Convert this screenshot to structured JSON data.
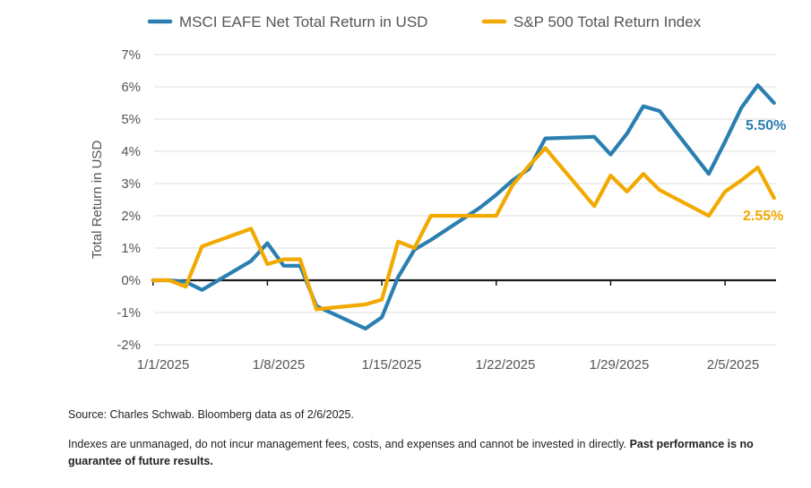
{
  "chart_data": {
    "type": "line",
    "title": "",
    "xlabel": "",
    "ylabel": "Total Return in USD",
    "ylim": [
      -2,
      7
    ],
    "y_ticks": [
      "7%",
      "6%",
      "5%",
      "4%",
      "3%",
      "2%",
      "1%",
      "0%",
      "-1%",
      "-2%"
    ],
    "x_tick_labels": [
      "1/1/2025",
      "1/8/2025",
      "1/15/2025",
      "1/22/2025",
      "1/29/2025",
      "2/5/2025"
    ],
    "grid": true,
    "legend_position": "top",
    "series": [
      {
        "name": "MSCI EAFE Net Total Return in USD",
        "color": "#2a7fb0",
        "end_label": "5.50%",
        "points": [
          [
            "2024-12-31",
            0.0
          ],
          [
            "2025-01-01",
            0.0
          ],
          [
            "2025-01-02",
            -0.05
          ],
          [
            "2025-01-03",
            -0.3
          ],
          [
            "2025-01-06",
            0.6
          ],
          [
            "2025-01-07",
            1.15
          ],
          [
            "2025-01-08",
            0.45
          ],
          [
            "2025-01-09",
            0.45
          ],
          [
            "2025-01-10",
            -0.8
          ],
          [
            "2025-01-13",
            -1.5
          ],
          [
            "2025-01-14",
            -1.15
          ],
          [
            "2025-01-15",
            0.1
          ],
          [
            "2025-01-16",
            0.95
          ],
          [
            "2025-01-17",
            1.25
          ],
          [
            "2025-01-20",
            2.25
          ],
          [
            "2025-01-21",
            2.65
          ],
          [
            "2025-01-22",
            3.1
          ],
          [
            "2025-01-23",
            3.45
          ],
          [
            "2025-01-24",
            4.4
          ],
          [
            "2025-01-27",
            4.45
          ],
          [
            "2025-01-28",
            3.9
          ],
          [
            "2025-01-29",
            4.55
          ],
          [
            "2025-01-30",
            5.4
          ],
          [
            "2025-01-31",
            5.25
          ],
          [
            "2025-02-03",
            3.3
          ],
          [
            "2025-02-04",
            4.3
          ],
          [
            "2025-02-05",
            5.35
          ],
          [
            "2025-02-06",
            6.05
          ],
          [
            "2025-02-07",
            5.5
          ]
        ]
      },
      {
        "name": "S&P 500 Total Return Index",
        "color": "#f2a900",
        "end_label": "2.55%",
        "points": [
          [
            "2024-12-31",
            0.0
          ],
          [
            "2025-01-01",
            0.0
          ],
          [
            "2025-01-02",
            -0.2
          ],
          [
            "2025-01-03",
            1.05
          ],
          [
            "2025-01-06",
            1.6
          ],
          [
            "2025-01-07",
            0.5
          ],
          [
            "2025-01-08",
            0.65
          ],
          [
            "2025-01-09",
            0.65
          ],
          [
            "2025-01-10",
            -0.9
          ],
          [
            "2025-01-13",
            -0.75
          ],
          [
            "2025-01-14",
            -0.6
          ],
          [
            "2025-01-15",
            1.2
          ],
          [
            "2025-01-16",
            1.0
          ],
          [
            "2025-01-17",
            2.0
          ],
          [
            "2025-01-20",
            2.0
          ],
          [
            "2025-01-21",
            2.0
          ],
          [
            "2025-01-22",
            2.95
          ],
          [
            "2025-01-23",
            3.55
          ],
          [
            "2025-01-24",
            4.1
          ],
          [
            "2025-01-27",
            2.3
          ],
          [
            "2025-01-28",
            3.25
          ],
          [
            "2025-01-29",
            2.75
          ],
          [
            "2025-01-30",
            3.3
          ],
          [
            "2025-01-31",
            2.8
          ],
          [
            "2025-02-03",
            2.0
          ],
          [
            "2025-02-04",
            2.75
          ],
          [
            "2025-02-05",
            3.1
          ],
          [
            "2025-02-06",
            3.5
          ],
          [
            "2025-02-07",
            2.55
          ]
        ]
      }
    ]
  },
  "notes": {
    "source": "Source: Charles Schwab. Bloomberg data as of 2/6/2025.",
    "disclaimer_regular": "Indexes are unmanaged, do not incur management fees, costs, and expenses and cannot be invested in directly. ",
    "disclaimer_bold": "Past performance is no guarantee of future results."
  }
}
